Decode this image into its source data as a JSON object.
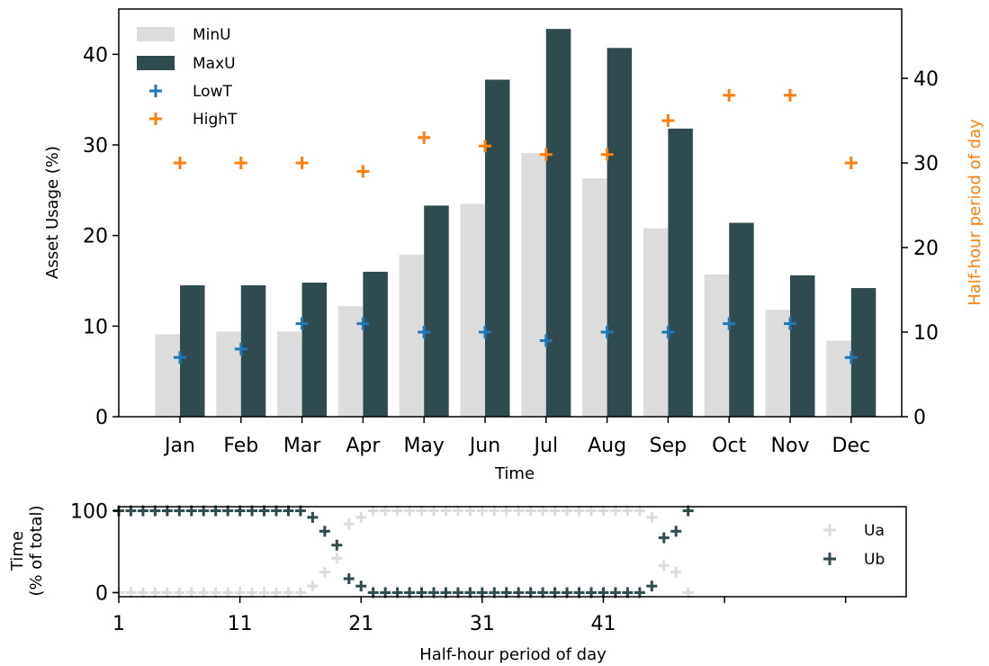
{
  "colors": {
    "minu": "#dcdcdc",
    "maxu": "#2f4b4f",
    "lowt": "#1f77b4",
    "hight": "#ff7f0e",
    "ua": "#dcdcdc",
    "ub": "#2f4b4f"
  },
  "chart_data": [
    {
      "type": "bar",
      "categories": [
        "Jan",
        "Feb",
        "Mar",
        "Apr",
        "May",
        "Jun",
        "Jul",
        "Aug",
        "Sep",
        "Oct",
        "Nov",
        "Dec"
      ],
      "xlabel": "Time",
      "ylabel": "Asset Usage (%)",
      "y2label": "Half-hour period of day",
      "ylim": [
        0,
        45
      ],
      "y2lim": [
        0,
        48.2
      ],
      "yticks": [
        0,
        10,
        20,
        30,
        40
      ],
      "y2ticks": [
        0,
        10,
        20,
        30,
        40
      ],
      "legend_position": "upper-left",
      "grid": false,
      "series": [
        {
          "name": "MinU",
          "kind": "bar",
          "axis": "left",
          "values": [
            9.1,
            9.4,
            9.4,
            12.2,
            17.9,
            23.5,
            29.1,
            26.3,
            20.8,
            15.7,
            11.8,
            8.4
          ]
        },
        {
          "name": "MaxU",
          "kind": "bar",
          "axis": "left",
          "values": [
            14.5,
            14.5,
            14.8,
            16.0,
            23.3,
            37.2,
            42.8,
            40.7,
            31.8,
            21.4,
            15.6,
            14.2
          ]
        },
        {
          "name": "LowT",
          "kind": "scatter",
          "axis": "right",
          "values": [
            7,
            8,
            11,
            11,
            10,
            10,
            9,
            10,
            10,
            11,
            11,
            7
          ]
        },
        {
          "name": "HighT",
          "kind": "scatter",
          "axis": "right",
          "values": [
            30,
            30,
            30,
            29,
            33,
            32,
            31,
            31,
            35,
            38,
            38,
            30
          ]
        }
      ]
    },
    {
      "type": "scatter",
      "xlabel": "Half-hour period of day",
      "ylabel": "Time\n(% of total)",
      "ylabel_lines": [
        "Time",
        "(% of total)"
      ],
      "xlim": [
        1,
        66
      ],
      "ylim": [
        -5,
        105
      ],
      "xticks": [
        1,
        11,
        21,
        31,
        41,
        51,
        61
      ],
      "xtick_labels": [
        "1",
        "11",
        "21",
        "31",
        "41",
        "",
        ""
      ],
      "yticks": [
        0,
        100
      ],
      "legend_position": "right",
      "grid": false,
      "x": [
        1,
        2,
        3,
        4,
        5,
        6,
        7,
        8,
        9,
        10,
        11,
        12,
        13,
        14,
        15,
        16,
        17,
        18,
        19,
        20,
        21,
        22,
        23,
        24,
        25,
        26,
        27,
        28,
        29,
        30,
        31,
        32,
        33,
        34,
        35,
        36,
        37,
        38,
        39,
        40,
        41,
        42,
        43,
        44,
        45,
        46,
        47,
        48
      ],
      "series": [
        {
          "name": "Ua",
          "values": [
            0,
            0,
            0,
            0,
            0,
            0,
            0,
            0,
            0,
            0,
            0,
            0,
            0,
            0,
            0,
            0,
            8,
            25,
            42,
            84,
            92,
            100,
            100,
            100,
            100,
            100,
            100,
            100,
            100,
            100,
            100,
            100,
            100,
            100,
            100,
            100,
            100,
            100,
            100,
            100,
            100,
            100,
            100,
            100,
            92,
            33,
            25,
            0
          ]
        },
        {
          "name": "Ub",
          "values": [
            100,
            100,
            100,
            100,
            100,
            100,
            100,
            100,
            100,
            100,
            100,
            100,
            100,
            100,
            100,
            100,
            92,
            75,
            58,
            17,
            8,
            0,
            0,
            0,
            0,
            0,
            0,
            0,
            0,
            0,
            0,
            0,
            0,
            0,
            0,
            0,
            0,
            0,
            0,
            0,
            0,
            0,
            0,
            0,
            8,
            67,
            75,
            100
          ]
        }
      ]
    }
  ]
}
